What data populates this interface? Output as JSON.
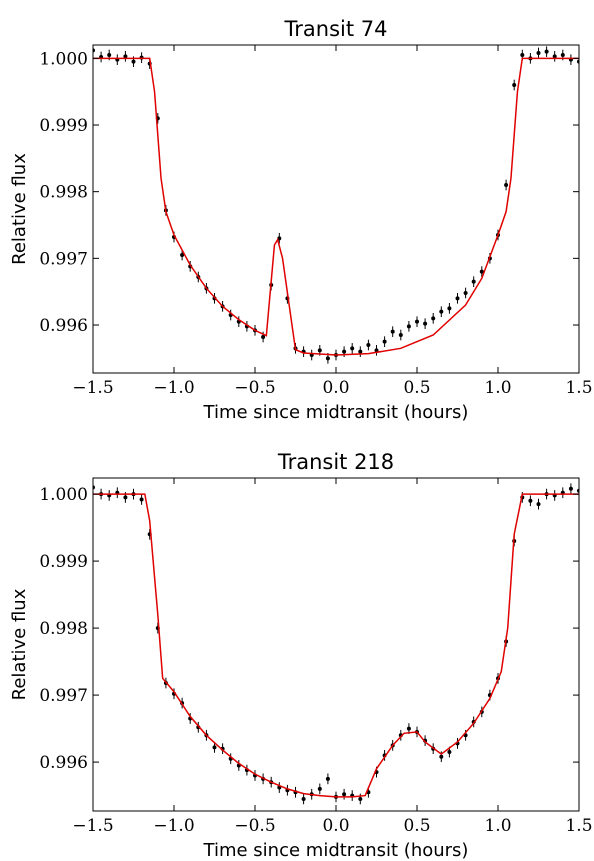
{
  "chart_data": [
    {
      "type": "scatter",
      "title": "Transit 74",
      "xlabel": "Time since midtransit (hours)",
      "ylabel": "Relative flux",
      "xlim": [
        -1.5,
        1.5
      ],
      "ylim": [
        0.99528,
        1.0002
      ],
      "xticks": [
        {
          "value": -1.5,
          "label": "−1.5"
        },
        {
          "value": -1.0,
          "label": "−1.0"
        },
        {
          "value": -0.5,
          "label": "−0.5"
        },
        {
          "value": 0,
          "label": "0.0"
        },
        0.5,
        {
          "value": 1.0,
          "label": "1.0"
        },
        1.5
      ],
      "yticks": [
        0.996,
        0.997,
        0.998,
        0.999,
        {
          "value": 1.0,
          "label": "1.000"
        }
      ],
      "series": [
        {
          "type": "errorbar",
          "color": "#000000",
          "yerr": 8e-05,
          "x": [
            -1.5,
            -1.45,
            -1.4,
            -1.35,
            -1.3,
            -1.25,
            -1.2,
            -1.15,
            -1.1,
            -1.05,
            -1.0,
            -0.95,
            -0.9,
            -0.85,
            -0.8,
            -0.75,
            -0.7,
            -0.65,
            -0.6,
            -0.55,
            -0.5,
            -0.45,
            -0.4,
            -0.35,
            -0.3,
            -0.25,
            -0.2,
            -0.15,
            -0.1,
            -0.05,
            0,
            0.05,
            0.1,
            0.15,
            0.2,
            0.25,
            0.3,
            0.35,
            0.4,
            0.45,
            0.5,
            0.55,
            0.6,
            0.65,
            0.7,
            0.75,
            0.8,
            0.85,
            0.9,
            0.95,
            1.0,
            1.05,
            1.1,
            1.15,
            1.2,
            1.25,
            1.3,
            1.35,
            1.4,
            1.45,
            1.5
          ],
          "values": [
            1.00012,
            1.00002,
            1.00005,
            0.99998,
            1.00003,
            0.99995,
            1.00001,
            0.99992,
            0.9991,
            0.99772,
            0.99732,
            0.99705,
            0.99688,
            0.99672,
            0.99655,
            0.9964,
            0.99628,
            0.99615,
            0.99605,
            0.99598,
            0.99592,
            0.99582,
            0.9966,
            0.9973,
            0.9964,
            0.99565,
            0.9956,
            0.99555,
            0.99562,
            0.9955,
            0.99555,
            0.9956,
            0.99565,
            0.9956,
            0.9957,
            0.99562,
            0.99575,
            0.9959,
            0.99585,
            0.99598,
            0.99605,
            0.99602,
            0.9961,
            0.9962,
            0.99625,
            0.9964,
            0.99648,
            0.99665,
            0.9968,
            0.997,
            0.99735,
            0.9981,
            0.9996,
            1.00005,
            1.0,
            1.00008,
            1.0001,
            1.00003,
            1.00005,
            0.99998,
            0.99995
          ]
        },
        {
          "type": "line",
          "color": "#e00000",
          "x": [
            -1.5,
            -1.15,
            -1.12,
            -1.08,
            -1.05,
            -1.0,
            -0.9,
            -0.8,
            -0.7,
            -0.6,
            -0.5,
            -0.43,
            -0.38,
            -0.36,
            -0.33,
            -0.25,
            -0.2,
            0,
            0.2,
            0.4,
            0.6,
            0.8,
            0.9,
            1.0,
            1.05,
            1.08,
            1.12,
            1.15,
            1.5
          ],
          "values": [
            1.0,
            1.0,
            0.9995,
            0.9982,
            0.9977,
            0.99735,
            0.9969,
            0.99655,
            0.99628,
            0.99608,
            0.99592,
            0.99584,
            0.9972,
            0.99728,
            0.997,
            0.99563,
            0.99558,
            0.99555,
            0.99557,
            0.99565,
            0.99585,
            0.9963,
            0.9967,
            0.99735,
            0.9977,
            0.9982,
            0.9995,
            1.0,
            1.0
          ]
        }
      ]
    },
    {
      "type": "scatter",
      "title": "Transit 218",
      "xlabel": "Time since midtransit (hours)",
      "ylabel": "Relative flux",
      "xlim": [
        -1.5,
        1.5
      ],
      "ylim": [
        0.99527,
        1.00024
      ],
      "xticks": [
        {
          "value": -1.5,
          "label": "−1.5"
        },
        {
          "value": -1.0,
          "label": "−1.0"
        },
        {
          "value": -0.5,
          "label": "−0.5"
        },
        {
          "value": 0,
          "label": "0.0"
        },
        0.5,
        {
          "value": 1.0,
          "label": "1.0"
        },
        1.5
      ],
      "yticks": [
        0.996,
        0.997,
        0.998,
        0.999,
        {
          "value": 1.0,
          "label": "1.000"
        }
      ],
      "series": [
        {
          "type": "errorbar",
          "color": "#000000",
          "yerr": 8e-05,
          "x": [
            -1.5,
            -1.45,
            -1.4,
            -1.35,
            -1.3,
            -1.25,
            -1.2,
            -1.15,
            -1.1,
            -1.05,
            -1.0,
            -0.95,
            -0.9,
            -0.85,
            -0.8,
            -0.75,
            -0.7,
            -0.65,
            -0.6,
            -0.55,
            -0.5,
            -0.45,
            -0.4,
            -0.35,
            -0.3,
            -0.25,
            -0.2,
            -0.15,
            -0.1,
            -0.05,
            0,
            0.05,
            0.1,
            0.15,
            0.2,
            0.25,
            0.3,
            0.35,
            0.4,
            0.45,
            0.5,
            0.55,
            0.6,
            0.65,
            0.7,
            0.75,
            0.8,
            0.85,
            0.9,
            0.95,
            1.0,
            1.05,
            1.1,
            1.15,
            1.2,
            1.25,
            1.3,
            1.35,
            1.4,
            1.45,
            1.5
          ],
          "values": [
            1.0001,
            1.0,
            0.99998,
            1.00002,
            0.99995,
            1.0,
            0.99992,
            0.9994,
            0.998,
            0.99718,
            0.99702,
            0.99688,
            0.99665,
            0.99652,
            0.9964,
            0.99622,
            0.9962,
            0.99605,
            0.99595,
            0.99588,
            0.9958,
            0.99575,
            0.9957,
            0.99562,
            0.99558,
            0.99555,
            0.99545,
            0.99552,
            0.9956,
            0.99575,
            0.99548,
            0.99552,
            0.9955,
            0.99545,
            0.99555,
            0.99585,
            0.9961,
            0.99625,
            0.9964,
            0.9965,
            0.99645,
            0.99632,
            0.9962,
            0.99608,
            0.99615,
            0.99628,
            0.9964,
            0.9966,
            0.99675,
            0.997,
            0.99725,
            0.9978,
            0.9993,
            0.99995,
            0.9999,
            0.99985,
            1.0,
            0.99998,
            1.00002,
            1.00008,
            1.00005
          ]
        },
        {
          "type": "line",
          "color": "#e00000",
          "x": [
            -1.5,
            -1.18,
            -1.15,
            -1.1,
            -1.07,
            -1.0,
            -0.9,
            -0.8,
            -0.7,
            -0.6,
            -0.5,
            -0.4,
            -0.3,
            -0.2,
            -0.1,
            0,
            0.1,
            0.18,
            0.25,
            0.35,
            0.42,
            0.5,
            0.55,
            0.65,
            0.75,
            0.85,
            0.95,
            1.02,
            1.06,
            1.1,
            1.15,
            1.5
          ],
          "values": [
            1.0,
            1.0,
            0.9996,
            0.9982,
            0.99725,
            0.99705,
            0.99668,
            0.9964,
            0.99618,
            0.99598,
            0.99582,
            0.9957,
            0.9956,
            0.99553,
            0.9955,
            0.99548,
            0.99548,
            0.9955,
            0.9959,
            0.99625,
            0.99643,
            0.99645,
            0.9963,
            0.99612,
            0.9963,
            0.99658,
            0.99695,
            0.99735,
            0.998,
            0.9994,
            1.0,
            1.0
          ]
        }
      ]
    }
  ]
}
